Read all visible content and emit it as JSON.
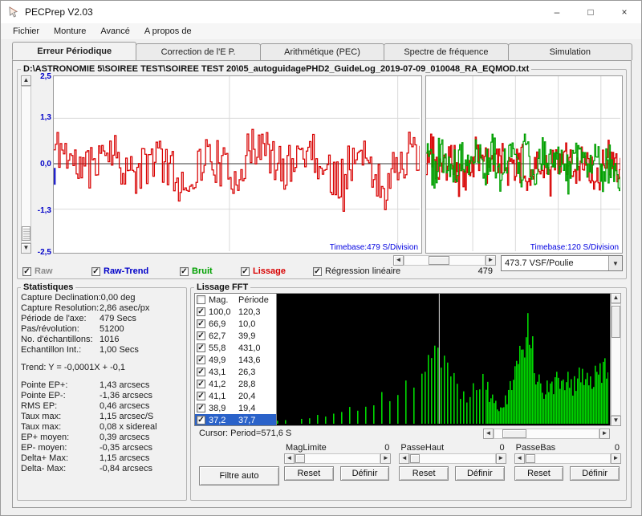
{
  "window": {
    "title": "PECPrep V2.03",
    "icons": {
      "minimize": "–",
      "maximize": "□",
      "close": "×"
    }
  },
  "menu": {
    "items": [
      "Fichier",
      "Monture",
      "Avancé",
      "A propos de"
    ]
  },
  "tabs": [
    {
      "label": "Erreur Périodique",
      "active": true
    },
    {
      "label": "Correction de l'E P.",
      "active": false
    },
    {
      "label": "Arithmétique (PEC)",
      "active": false
    },
    {
      "label": "Spectre de fréquence",
      "active": false
    },
    {
      "label": "Simulation",
      "active": false
    }
  ],
  "file_path": "D:\\ASTRONOMIE 5\\SOIREE TEST\\SOIREE TEST 20\\05_autoguidagePHD2_GuideLog_2019-07-09_010048_RA_EQMOD.txt",
  "glyphs": {
    "check": "✓",
    "up": "▲",
    "down": "▼",
    "left": "◄",
    "right": "►",
    "drop": "▼"
  },
  "colors": {
    "raw": "#8c8c8c",
    "raw_trend": "#0000c8",
    "bruit": "#00a000",
    "lissage": "#d80000",
    "regression": "#1a1a1a",
    "axis_label": "#0000c8",
    "timebase": "#0000e0",
    "fft_bar": "#00d800",
    "fft_bg": "#000000",
    "selected_row_bg": "#2a62c9"
  },
  "legend_toggles": [
    {
      "label": "Raw",
      "checked": true
    },
    {
      "label": "Raw-Trend",
      "checked": true
    },
    {
      "label": "Bruit",
      "checked": true
    },
    {
      "label": "Lissage",
      "checked": true
    },
    {
      "label": "Régression linéaire",
      "checked": true
    }
  ],
  "axis_period_value": "479",
  "vsf_select": {
    "value": "473.7 VSF/Poulie"
  },
  "statistics": {
    "title": "Statistiques",
    "rows": [
      {
        "label": "Capture Declination:",
        "value": "0,00 deg"
      },
      {
        "label": "Capture Resolution:",
        "value": "2,86 asec/px"
      },
      {
        "label": "Période de l'axe:",
        "value": "479 Secs"
      },
      {
        "label": "Pas/révolution:",
        "value": "51200"
      },
      {
        "label": "No. d'échantillons:",
        "value": "1016"
      },
      {
        "label": "Echantillon Int.:",
        "value": "1,00 Secs"
      }
    ],
    "trend": "Trend: Y = -0,0001X + -0,1",
    "rows2": [
      {
        "label": "Pointe EP+:",
        "value": "1,43 arcsecs"
      },
      {
        "label": "Pointe EP-:",
        "value": "-1,36 arcsecs"
      },
      {
        "label": "RMS EP:",
        "value": "0,46 arcsecs"
      },
      {
        "label": "Taux max:",
        "value": "1,15 arcsec/S"
      },
      {
        "label": "Taux max:",
        "value": "0,08 x sidereal"
      },
      {
        "label": "EP+ moyen:",
        "value": "0,39 arcsecs"
      },
      {
        "label": "EP- moyen:",
        "value": "-0,35 arcsecs"
      },
      {
        "label": "Delta+ Max:",
        "value": "1,15 arcsecs"
      },
      {
        "label": "Delta- Max:",
        "value": "-0,84 arcsecs"
      }
    ]
  },
  "fft_panel": {
    "title": "Lissage FFT",
    "header": {
      "mag": "Mag.",
      "period": "Période"
    },
    "cursor_text": "Cursor: Period=571,6 S",
    "auto_filter_label": "Filtre auto",
    "reset_label": "Reset",
    "define_label": "Définir",
    "filters": [
      {
        "label": "MagLimite",
        "value": "0"
      },
      {
        "label": "PasseHaut",
        "value": "0"
      },
      {
        "label": "PasseBas",
        "value": "0"
      }
    ]
  },
  "chart_data": [
    {
      "type": "line",
      "name": "periodic-error-full",
      "ylim": [
        -2.5,
        2.5
      ],
      "yticks": [
        "2,5",
        "1,3",
        "0,0",
        "-1,3",
        "-2,5"
      ],
      "timebase_label": "Timebase:479 S/Division",
      "samples": 1016,
      "sample_interval_s": 1.0,
      "series": [
        {
          "name": "Lissage",
          "color": "#d80000",
          "peak_plus": 1.43,
          "peak_minus": -1.36,
          "rms": 0.46,
          "mean_plus": 0.39,
          "mean_minus": -0.35
        }
      ],
      "seed": 11
    },
    {
      "type": "line",
      "name": "noise-window",
      "ylim": [
        -2.5,
        2.5
      ],
      "timebase_label": "Timebase:120 S/Division",
      "series": [
        {
          "name": "Lissage",
          "color": "#d80000"
        },
        {
          "name": "Bruit",
          "color": "#00a000"
        }
      ],
      "seed": 23
    },
    {
      "type": "bar",
      "name": "fft-spectrum",
      "cursor": {
        "period_s": 571.6,
        "position": 0.49
      },
      "peaks": [
        {
          "mag": 100.0,
          "period_s": 120.3,
          "enabled": true
        },
        {
          "mag": 66.9,
          "period_s": 10.0,
          "enabled": true
        },
        {
          "mag": 62.7,
          "period_s": 39.9,
          "enabled": true
        },
        {
          "mag": 55.8,
          "period_s": 431.0,
          "enabled": true
        },
        {
          "mag": 49.9,
          "period_s": 143.6,
          "enabled": true
        },
        {
          "mag": 43.1,
          "period_s": 26.3,
          "enabled": true
        },
        {
          "mag": 41.2,
          "period_s": 28.8,
          "enabled": true
        },
        {
          "mag": 41.1,
          "period_s": 20.4,
          "enabled": true
        },
        {
          "mag": 38.9,
          "period_s": 19.4,
          "enabled": true
        },
        {
          "mag": 37.2,
          "period_s": 37.7,
          "enabled": true,
          "selected": true
        }
      ],
      "seed": 5
    }
  ]
}
